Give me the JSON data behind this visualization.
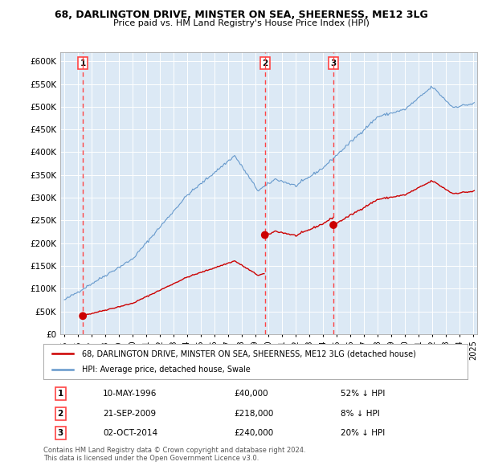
{
  "title": "68, DARLINGTON DRIVE, MINSTER ON SEA, SHEERNESS, ME12 3LG",
  "subtitle": "Price paid vs. HM Land Registry's House Price Index (HPI)",
  "legend_line1": "68, DARLINGTON DRIVE, MINSTER ON SEA, SHEERNESS, ME12 3LG (detached house)",
  "legend_line2": "HPI: Average price, detached house, Swale",
  "footer": "Contains HM Land Registry data © Crown copyright and database right 2024.\nThis data is licensed under the Open Government Licence v3.0.",
  "transactions": [
    {
      "num": 1,
      "date": "10-MAY-1996",
      "price": 40000,
      "pct": "52% ↓ HPI",
      "year": 1996.36
    },
    {
      "num": 2,
      "date": "21-SEP-2009",
      "price": 218000,
      "pct": "8% ↓ HPI",
      "year": 2009.72
    },
    {
      "num": 3,
      "date": "02-OCT-2014",
      "price": 240000,
      "pct": "20% ↓ HPI",
      "year": 2014.75
    }
  ],
  "hpi_color": "#6699cc",
  "price_color": "#cc0000",
  "vline_color": "#ff4444",
  "dot_color": "#cc0000",
  "background_color": "#ffffff",
  "plot_bg_color": "#dce9f5",
  "ylim": [
    0,
    620000
  ],
  "yticks": [
    0,
    50000,
    100000,
    150000,
    200000,
    250000,
    300000,
    350000,
    400000,
    450000,
    500000,
    550000,
    600000
  ],
  "xlim_start": 1994.7,
  "xlim_end": 2025.3,
  "xticks": [
    1995,
    1996,
    1997,
    1998,
    1999,
    2000,
    2001,
    2002,
    2003,
    2004,
    2005,
    2006,
    2007,
    2008,
    2009,
    2010,
    2011,
    2012,
    2013,
    2014,
    2015,
    2016,
    2017,
    2018,
    2019,
    2020,
    2021,
    2022,
    2023,
    2024,
    2025
  ]
}
